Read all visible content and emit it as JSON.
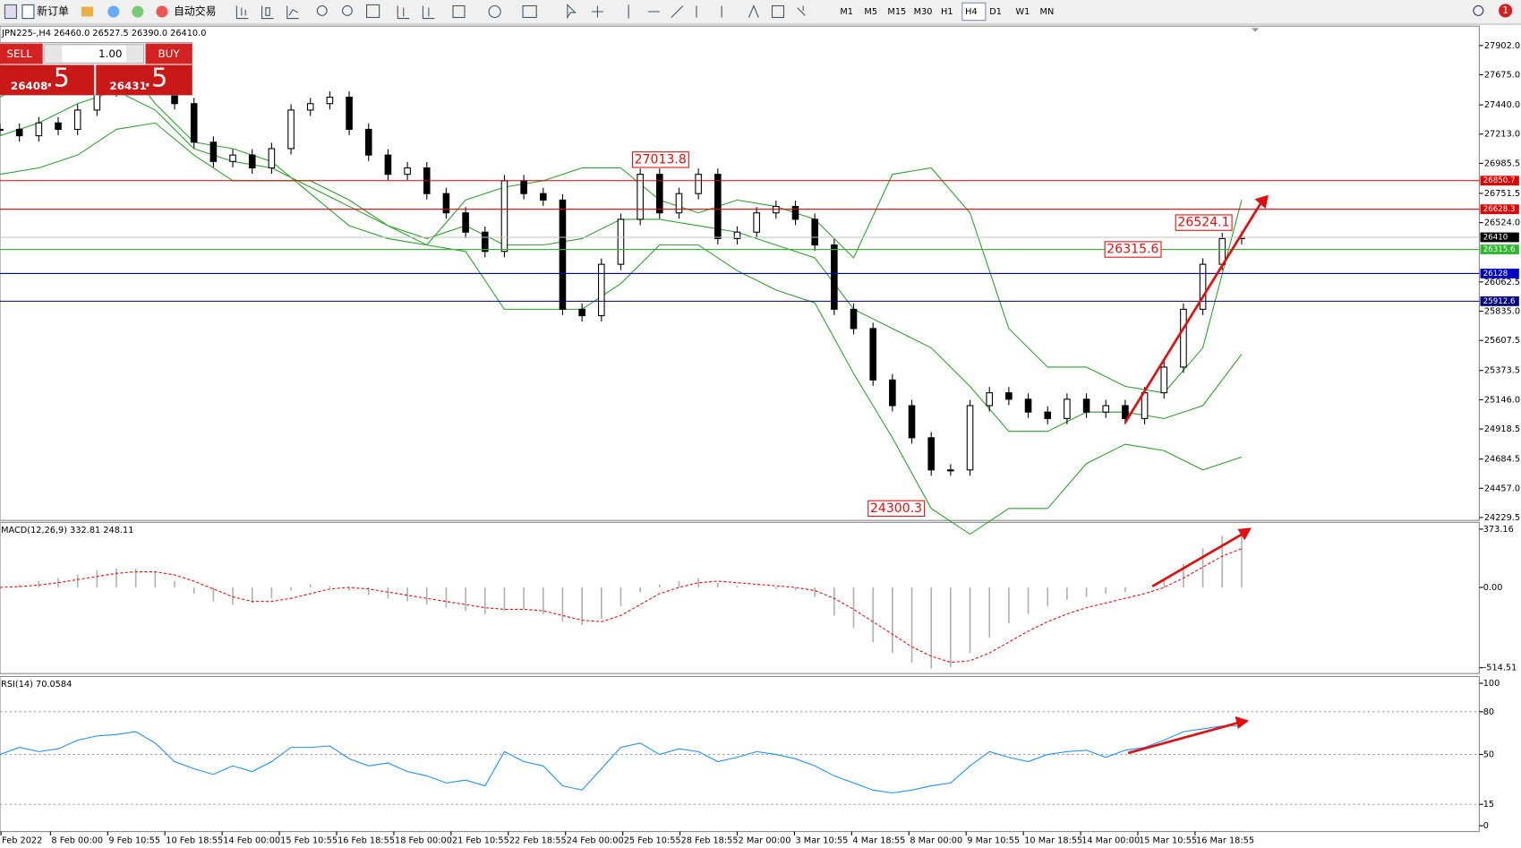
{
  "toolbar": {
    "new_order": "新订单",
    "auto_trading": "自动交易",
    "timeframes": [
      "M1",
      "M5",
      "M15",
      "M30",
      "H1",
      "H4",
      "D1",
      "W1",
      "MN"
    ],
    "badge": "1"
  },
  "symbol_info": "JPN225-,H4 26460.0 26527.5 26390.0 26410.0",
  "trade_panel": {
    "sell": "SELL",
    "buy": "BUY",
    "lot": "1.00",
    "bid_main": "26408",
    "bid_pip": ".5",
    "ask_main": "26431",
    "ask_pip": ".5"
  },
  "main_chart": {
    "type": "candlestick",
    "ylim": [
      24229.5,
      27902
    ],
    "yticks": [
      {
        "value": 27902,
        "label": "27902.0"
      },
      {
        "value": 27675,
        "label": "27675.0"
      },
      {
        "value": 27440,
        "label": "27440.0"
      },
      {
        "value": 27213,
        "label": "27213.0"
      },
      {
        "value": 26985.5,
        "label": "26985.5"
      },
      {
        "value": 26751.5,
        "label": "26751.5"
      },
      {
        "value": 26524,
        "label": "26524.0"
      },
      {
        "value": 26062.5,
        "label": "26062.5"
      },
      {
        "value": 25835,
        "label": "25835.0"
      },
      {
        "value": 25607.5,
        "label": "25607.5"
      },
      {
        "value": 25373.5,
        "label": "25373.5"
      },
      {
        "value": 25146,
        "label": "25146.0"
      },
      {
        "value": 24918.5,
        "label": "24918.5"
      },
      {
        "value": 24684.5,
        "label": "24684.5"
      },
      {
        "value": 24457,
        "label": "24457.0"
      },
      {
        "value": 24229.5,
        "label": "24229.5"
      }
    ],
    "closes": [
      27250,
      27200,
      27300,
      27250,
      27400,
      27550,
      27600,
      27650,
      27600,
      27450,
      27150,
      27000,
      27050,
      26950,
      27100,
      27400,
      27450,
      27500,
      27250,
      27050,
      26900,
      26950,
      26750,
      26600,
      26450,
      26300,
      26850,
      26750,
      26700,
      25850,
      25800,
      26200,
      26550,
      26900,
      26600,
      26750,
      26900,
      26400,
      26450,
      26600,
      26650,
      26550,
      26350,
      25850,
      25700,
      25300,
      25100,
      24850,
      24600,
      24600,
      25100,
      25200,
      25150,
      25050,
      25000,
      25150,
      25050,
      25100,
      25000,
      25200,
      25400,
      25850,
      26200,
      26400,
      26410
    ],
    "band_upper": [
      27500,
      27650,
      27900,
      27850,
      27450,
      27150,
      27100,
      27000,
      26750,
      26500,
      26400,
      26350,
      26700,
      26800,
      26850,
      26950,
      26950,
      26700,
      26600,
      26700,
      26650,
      26550,
      26250,
      26900,
      26950,
      26600,
      25700,
      25400,
      25400,
      25250,
      25200,
      25550,
      26700
    ],
    "band_middle": [
      27200,
      27300,
      27450,
      27550,
      27400,
      27100,
      27000,
      26950,
      26800,
      26650,
      26500,
      26400,
      26500,
      26350,
      26350,
      26400,
      26550,
      26550,
      26500,
      26450,
      26350,
      26250,
      25850,
      25700,
      25550,
      25250,
      24900,
      24900,
      25050,
      25050,
      25000,
      25100,
      25500
    ],
    "band_lower": [
      26900,
      26950,
      27050,
      27250,
      27300,
      27050,
      26850,
      26850,
      26850,
      26700,
      26500,
      26350,
      26300,
      25850,
      25850,
      25850,
      26050,
      26350,
      26350,
      26150,
      26000,
      25900,
      25350,
      24850,
      24300,
      24100,
      24300,
      24300,
      24650,
      24800,
      24750,
      24600,
      24700
    ],
    "price_lines": [
      {
        "value": 26850.7,
        "color": "#e00000"
      },
      {
        "value": 26628.3,
        "color": "#e00000"
      },
      {
        "value": 26410.0,
        "color": "#000000"
      },
      {
        "value": 26315.6,
        "color": "#2db82d"
      },
      {
        "value": 26128.0,
        "color": "#0000c8"
      },
      {
        "value": 25912.6,
        "color": "#000080"
      }
    ],
    "annotations": [
      27013.8,
      24300.3,
      26315.6,
      26524.1
    ]
  },
  "macd": {
    "label": "MACD(12,26,9) 332.81 248.11",
    "ylim": [
      -514.51,
      373.16
    ],
    "yticks": [
      373.16,
      {
        "value": 0,
        "label": "0.00"
      },
      -514.51
    ],
    "histogram": [
      10,
      20,
      40,
      60,
      80,
      110,
      120,
      120,
      100,
      40,
      -40,
      -90,
      -110,
      -100,
      -70,
      -20,
      20,
      10,
      -20,
      -50,
      -70,
      -90,
      -110,
      -130,
      -150,
      -170,
      -150,
      -140,
      -170,
      -220,
      -240,
      -200,
      -120,
      -30,
      20,
      40,
      60,
      30,
      10,
      0,
      -10,
      -20,
      -60,
      -180,
      -260,
      -350,
      -420,
      -480,
      -520,
      -510,
      -420,
      -320,
      -230,
      -170,
      -120,
      -80,
      -60,
      -40,
      -30,
      0,
      50,
      150,
      250,
      330,
      333
    ],
    "signal": [
      0,
      5,
      15,
      30,
      50,
      70,
      90,
      100,
      100,
      80,
      40,
      -10,
      -60,
      -90,
      -90,
      -70,
      -40,
      -10,
      0,
      -10,
      -30,
      -50,
      -70,
      -90,
      -110,
      -130,
      -140,
      -140,
      -150,
      -180,
      -210,
      -220,
      -180,
      -110,
      -40,
      0,
      30,
      40,
      30,
      20,
      10,
      0,
      -20,
      -70,
      -140,
      -220,
      -300,
      -380,
      -440,
      -480,
      -470,
      -420,
      -350,
      -280,
      -220,
      -170,
      -130,
      -100,
      -70,
      -40,
      0,
      60,
      130,
      200,
      248
    ]
  },
  "rsi": {
    "label": "RSI(14) 70.0584",
    "ylim": [
      0,
      100
    ],
    "yticks": [
      100,
      80,
      50,
      15,
      0
    ],
    "levels": [
      80,
      50,
      15
    ],
    "values": [
      50,
      55,
      52,
      54,
      60,
      63,
      64,
      66,
      58,
      45,
      40,
      36,
      42,
      38,
      45,
      55,
      55,
      56,
      47,
      42,
      44,
      38,
      35,
      30,
      32,
      28,
      52,
      45,
      42,
      28,
      25,
      40,
      55,
      58,
      50,
      54,
      52,
      45,
      48,
      52,
      50,
      47,
      42,
      35,
      30,
      25,
      23,
      25,
      28,
      30,
      42,
      52,
      48,
      45,
      50,
      52,
      53,
      48,
      53,
      55,
      60,
      66,
      68,
      70,
      70
    ]
  },
  "time_axis": [
    "Feb 2022",
    "8 Feb 00:00",
    "9 Feb 10:55",
    "10 Feb 18:55",
    "14 Feb 00:00",
    "15 Feb 10:55",
    "16 Feb 18:55",
    "18 Feb 00:00",
    "21 Feb 10:55",
    "22 Feb 18:55",
    "24 Feb 00:00",
    "25 Feb 10:55",
    "28 Feb 18:55",
    "2 Mar 00:00",
    "3 Mar 10:55",
    "4 Mar 18:55",
    "8 Mar 00:00",
    "9 Mar 10:55",
    "10 Mar 18:55",
    "14 Mar 00:00",
    "15 Mar 10:55",
    "16 Mar 18:55"
  ]
}
